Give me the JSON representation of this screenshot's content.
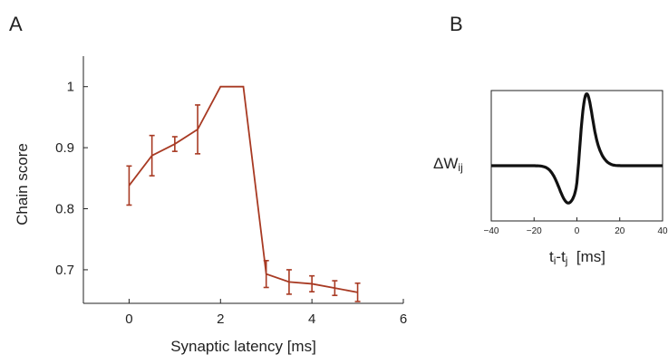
{
  "panels": {
    "a_label": "A",
    "b_label": "B"
  },
  "chart_data": [
    {
      "type": "line",
      "panel": "A",
      "xlabel": "Synaptic latency [ms]",
      "ylabel": "Chain score",
      "xlim": [
        -1,
        6
      ],
      "ylim": [
        0.645,
        1.05
      ],
      "xticks": [
        "0",
        "2",
        "4",
        "6"
      ],
      "xtick_values": [
        0,
        2,
        4,
        6
      ],
      "yticks": [
        "0.7",
        "0.8",
        "0.9",
        "1"
      ],
      "ytick_values": [
        0.7,
        0.8,
        0.9,
        1
      ],
      "grid": false,
      "series": [
        {
          "color": "#a83a23",
          "x": [
            0,
            0.5,
            1,
            1.5,
            2,
            2.5,
            3,
            3.5,
            4,
            4.5,
            5
          ],
          "y": [
            0.838,
            0.887,
            0.906,
            0.93,
            1.0,
            1.0,
            0.693,
            0.68,
            0.677,
            0.67,
            0.663
          ],
          "err": [
            0.032,
            0.033,
            0.012,
            0.04,
            0,
            0,
            0.022,
            0.02,
            0.013,
            0.012,
            0.015
          ]
        }
      ]
    },
    {
      "type": "line",
      "panel": "B",
      "ylabel": "ΔW",
      "ylabel_sub": "ij",
      "xlabel_parts": [
        "t",
        "i",
        "-t",
        "j",
        "  [ms]"
      ],
      "xlim": [
        -40,
        40
      ],
      "xticks": [
        "−40",
        "−20",
        "0",
        "20",
        "40"
      ],
      "xtick_values": [
        -40,
        -20,
        0,
        20,
        40
      ],
      "grid": false,
      "series": [
        {
          "color": "#111111",
          "description_function": "STDP window: negative dip before 0, positive peak after 0",
          "x": [
            -40,
            -20,
            -10,
            -5,
            -3,
            0,
            3,
            5,
            10,
            20,
            40
          ],
          "y": [
            0,
            -0.15,
            -0.6,
            -0.9,
            -0.85,
            0,
            0.9,
            1,
            0.5,
            0.05,
            0
          ]
        }
      ]
    }
  ]
}
